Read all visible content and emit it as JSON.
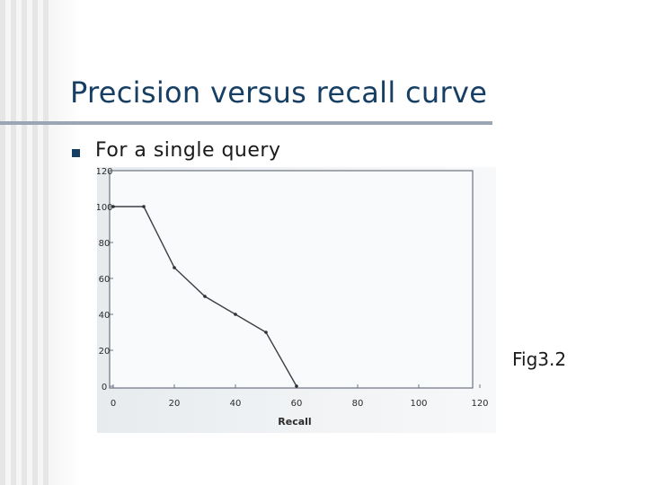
{
  "slide": {
    "title": "Precision versus recall curve",
    "bullet_text": "For a single query",
    "figure_label": "Fig3.2",
    "colors": {
      "title": "#173f63",
      "bullet": "#173f63",
      "rule": "#9aa6b3"
    }
  },
  "chart_data": {
    "type": "line",
    "title": "",
    "xlabel": "Recall",
    "ylabel": "",
    "x": [
      0,
      10,
      20,
      30,
      40,
      50,
      60
    ],
    "series": [
      {
        "values": [
          100,
          100,
          66,
          50,
          40,
          30,
          0
        ]
      }
    ],
    "xlim": [
      0,
      120
    ],
    "ylim": [
      0,
      120
    ],
    "xticks": [
      "0",
      "20",
      "40",
      "60",
      "80",
      "100",
      "120"
    ],
    "yticks": [
      "0",
      "20",
      "40",
      "60",
      "80",
      "100",
      "120"
    ],
    "grid": false,
    "legend": "none"
  }
}
